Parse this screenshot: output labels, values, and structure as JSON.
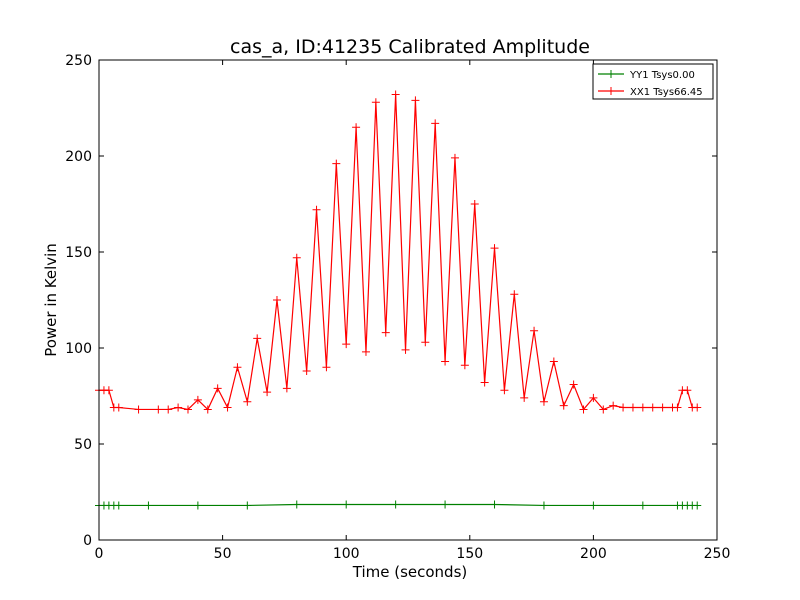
{
  "chart_data": {
    "type": "line",
    "title": "cas_a, ID:41235 Calibrated Amplitude",
    "xlabel": "Time (seconds)",
    "ylabel": "Power in Kelvin",
    "xlim": [
      0,
      250
    ],
    "ylim": [
      0,
      250
    ],
    "xticks": [
      "0",
      "50",
      "100",
      "150",
      "200",
      "250"
    ],
    "yticks": [
      "0",
      "50",
      "100",
      "150",
      "200",
      "250"
    ],
    "grid": false,
    "legend_position": "top-right",
    "marker": "+",
    "series": [
      {
        "name": "YY1 Tsys0.00",
        "color": "#008000",
        "x": [
          0,
          2,
          4,
          6,
          8,
          20,
          40,
          60,
          80,
          100,
          120,
          140,
          160,
          180,
          200,
          220,
          234,
          236,
          238,
          240,
          242
        ],
        "values": [
          18,
          18,
          18,
          18,
          18,
          18,
          18,
          18,
          18.5,
          18.5,
          18.5,
          18.5,
          18.5,
          18,
          18,
          18,
          18,
          18,
          18,
          18,
          18
        ]
      },
      {
        "name": "XX1 Tsys66.45",
        "color": "#ff0000",
        "x": [
          0,
          2,
          4,
          6,
          8,
          16,
          24,
          28,
          32,
          36,
          40,
          44,
          48,
          52,
          56,
          60,
          64,
          68,
          72,
          76,
          80,
          84,
          88,
          92,
          96,
          100,
          104,
          108,
          112,
          116,
          120,
          124,
          128,
          132,
          136,
          140,
          144,
          148,
          152,
          156,
          160,
          164,
          168,
          172,
          176,
          180,
          184,
          188,
          192,
          196,
          200,
          204,
          208,
          212,
          216,
          220,
          224,
          228,
          232,
          234,
          236,
          238,
          240,
          242
        ],
        "values": [
          78,
          78,
          78,
          69,
          69,
          68,
          68,
          68,
          69,
          68,
          73,
          68,
          79,
          69,
          90,
          72,
          105,
          77,
          125,
          79,
          147,
          88,
          172,
          90,
          196,
          102,
          215,
          98,
          228,
          108,
          232,
          99,
          229,
          103,
          217,
          93,
          199,
          91,
          175,
          82,
          152,
          78,
          128,
          74,
          109,
          72,
          93,
          70,
          81,
          68,
          74,
          68,
          70,
          69,
          69,
          69,
          69,
          69,
          69,
          69,
          78,
          78,
          69,
          69
        ]
      }
    ]
  }
}
